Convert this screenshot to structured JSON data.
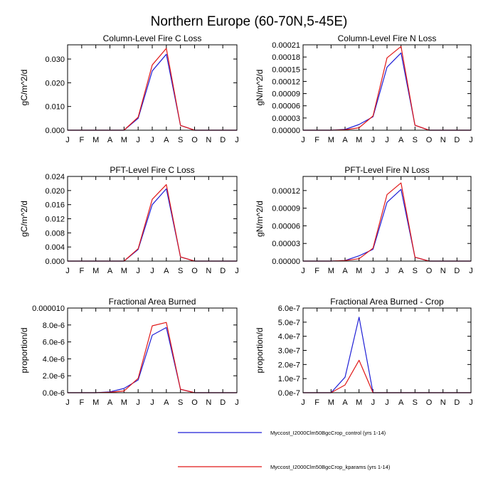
{
  "title": "Northern Europe (60-70N,5-45E)",
  "months": [
    "J",
    "F",
    "M",
    "A",
    "M",
    "J",
    "J",
    "A",
    "S",
    "O",
    "N",
    "D",
    "J"
  ],
  "colors": {
    "control": "#1f1fd6",
    "kparams": "#e01818",
    "axis": "#000000"
  },
  "legend": [
    {
      "label": "Myccost_I2000Clm50BgcCrop_control (yrs 1-14)",
      "color": "#1f1fd6"
    },
    {
      "label": "Myccost_I2000Clm50BgcCrop_kparams (yrs 1-14)",
      "color": "#e01818"
    }
  ],
  "chart_data": [
    {
      "type": "line",
      "title": "Column-Level Fire C Loss",
      "ylabel": "gC/m^2/d",
      "ylim": [
        0,
        0.036
      ],
      "yticks": [
        0,
        0.01,
        0.02,
        0.03
      ],
      "yticklabels": [
        "0.000",
        "0.010",
        "0.020",
        "0.030"
      ],
      "series": [
        {
          "name": "control",
          "values": [
            0,
            0,
            0,
            0,
            0,
            0.005,
            0.025,
            0.032,
            0.002,
            0,
            0,
            0,
            0
          ]
        },
        {
          "name": "kparams",
          "values": [
            0,
            0,
            0,
            0,
            0,
            0.0055,
            0.0275,
            0.0345,
            0.002,
            0,
            0,
            0,
            0
          ]
        }
      ]
    },
    {
      "type": "line",
      "title": "Column-Level Fire N Loss",
      "ylabel": "gN/m^2/d",
      "ylim": [
        0,
        0.00021
      ],
      "yticks": [
        0,
        3e-05,
        6e-05,
        9e-05,
        0.00012,
        0.00015,
        0.00018,
        0.00021
      ],
      "yticklabels": [
        "0.00000",
        "0.00003",
        "0.00006",
        "0.00009",
        "0.00012",
        "0.00015",
        "0.00018",
        "0.00021"
      ],
      "series": [
        {
          "name": "control",
          "values": [
            0,
            0,
            0,
            2e-06,
            1.4e-05,
            3.3e-05,
            0.000155,
            0.00019,
            1.2e-05,
            0,
            0,
            0,
            0
          ]
        },
        {
          "name": "kparams",
          "values": [
            0,
            0,
            0,
            1e-06,
            6e-06,
            3.5e-05,
            0.000178,
            0.000206,
            1.2e-05,
            0,
            0,
            0,
            0
          ]
        }
      ]
    },
    {
      "type": "line",
      "title": "PFT-Level Fire C Loss",
      "ylabel": "gC/m^2/d",
      "ylim": [
        0,
        0.024
      ],
      "yticks": [
        0,
        0.004,
        0.008,
        0.012,
        0.016,
        0.02,
        0.024
      ],
      "yticklabels": [
        "0.000",
        "0.004",
        "0.008",
        "0.012",
        "0.016",
        "0.020",
        "0.024"
      ],
      "series": [
        {
          "name": "control",
          "values": [
            0,
            0,
            0,
            0,
            0,
            0.0033,
            0.016,
            0.0205,
            0.0012,
            0,
            0,
            0,
            0
          ]
        },
        {
          "name": "kparams",
          "values": [
            0,
            0,
            0,
            0,
            0,
            0.0035,
            0.0175,
            0.0217,
            0.0012,
            0,
            0,
            0,
            0
          ]
        }
      ]
    },
    {
      "type": "line",
      "title": "PFT-Level Fire N Loss",
      "ylabel": "gN/m^2/d",
      "ylim": [
        0,
        0.000144
      ],
      "yticks": [
        0,
        3e-05,
        6e-05,
        9e-05,
        0.00012
      ],
      "yticklabels": [
        "0.00000",
        "0.00003",
        "0.00006",
        "0.00009",
        "0.00012"
      ],
      "series": [
        {
          "name": "control",
          "values": [
            0,
            0,
            0,
            1e-06,
            9e-06,
            2e-05,
            0.0001,
            0.000122,
            6.5e-06,
            0,
            0,
            0,
            0
          ]
        },
        {
          "name": "kparams",
          "values": [
            0,
            0,
            0,
            1e-06,
            4e-06,
            2.2e-05,
            0.000113,
            0.000133,
            6.5e-06,
            0,
            0,
            0,
            0
          ]
        }
      ]
    },
    {
      "type": "line",
      "title": "Fractional Area Burned",
      "ylabel": "proportion/d",
      "ylim": [
        0,
        1e-05
      ],
      "yticks": [
        0,
        2e-06,
        4e-06,
        6e-06,
        8e-06,
        1e-05
      ],
      "yticklabels": [
        "0.0e-6",
        "2.0e-6",
        "4.0e-6",
        "6.0e-6",
        "8.0e-6",
        "0.000010"
      ],
      "series": [
        {
          "name": "control",
          "values": [
            0,
            0,
            0,
            1e-07,
            5e-07,
            1.5e-06,
            6.8e-06,
            7.7e-06,
            4e-07,
            0,
            0,
            0,
            0
          ]
        },
        {
          "name": "kparams",
          "values": [
            0,
            0,
            0,
            5e-08,
            2e-07,
            1.7e-06,
            7.9e-06,
            8.3e-06,
            4e-07,
            0,
            0,
            0,
            0
          ]
        }
      ]
    },
    {
      "type": "line",
      "title": "Fractional Area Burned - Crop",
      "ylabel": "proportion/d",
      "ylim": [
        0,
        6e-07
      ],
      "yticks": [
        0,
        1e-07,
        2e-07,
        3e-07,
        4e-07,
        5e-07,
        6e-07
      ],
      "yticklabels": [
        "0.0e-7",
        "1.0e-7",
        "2.0e-7",
        "3.0e-7",
        "4.0e-7",
        "5.0e-7",
        "6.0e-7"
      ],
      "series": [
        {
          "name": "control",
          "values": [
            0,
            0,
            0,
            1.1e-07,
            5.35e-07,
            0,
            0,
            0,
            0,
            0,
            0,
            0,
            0
          ]
        },
        {
          "name": "kparams",
          "values": [
            0,
            0,
            0,
            5.5e-08,
            2.3e-07,
            0,
            0,
            0,
            0,
            0,
            0,
            0,
            0
          ]
        }
      ]
    }
  ]
}
